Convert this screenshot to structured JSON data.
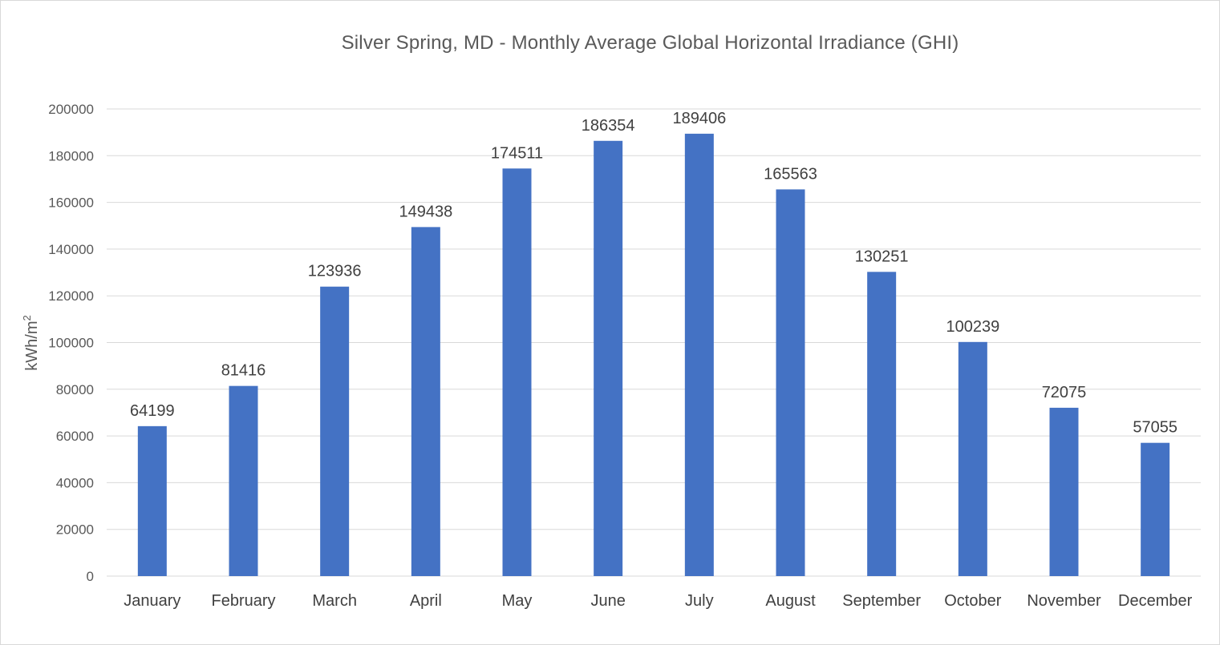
{
  "chart_data": {
    "type": "bar",
    "title": "Silver Spring, MD - Monthly Average Global Horizontal Irradiance (GHI)",
    "xlabel": "",
    "ylabel": "kWh/m",
    "ylabel_superscript": "2",
    "categories": [
      "January",
      "February",
      "March",
      "April",
      "May",
      "June",
      "July",
      "August",
      "September",
      "October",
      "November",
      "December"
    ],
    "values": [
      64199,
      81416,
      123936,
      149438,
      174511,
      186354,
      189406,
      165563,
      130251,
      100239,
      72075,
      57055
    ],
    "ylim": [
      0,
      200000
    ],
    "yticks": [
      0,
      20000,
      40000,
      60000,
      80000,
      100000,
      120000,
      140000,
      160000,
      180000,
      200000
    ],
    "grid": true,
    "legend": "none",
    "bar_color": "#4472c4",
    "grid_color": "#d9d9d9"
  }
}
